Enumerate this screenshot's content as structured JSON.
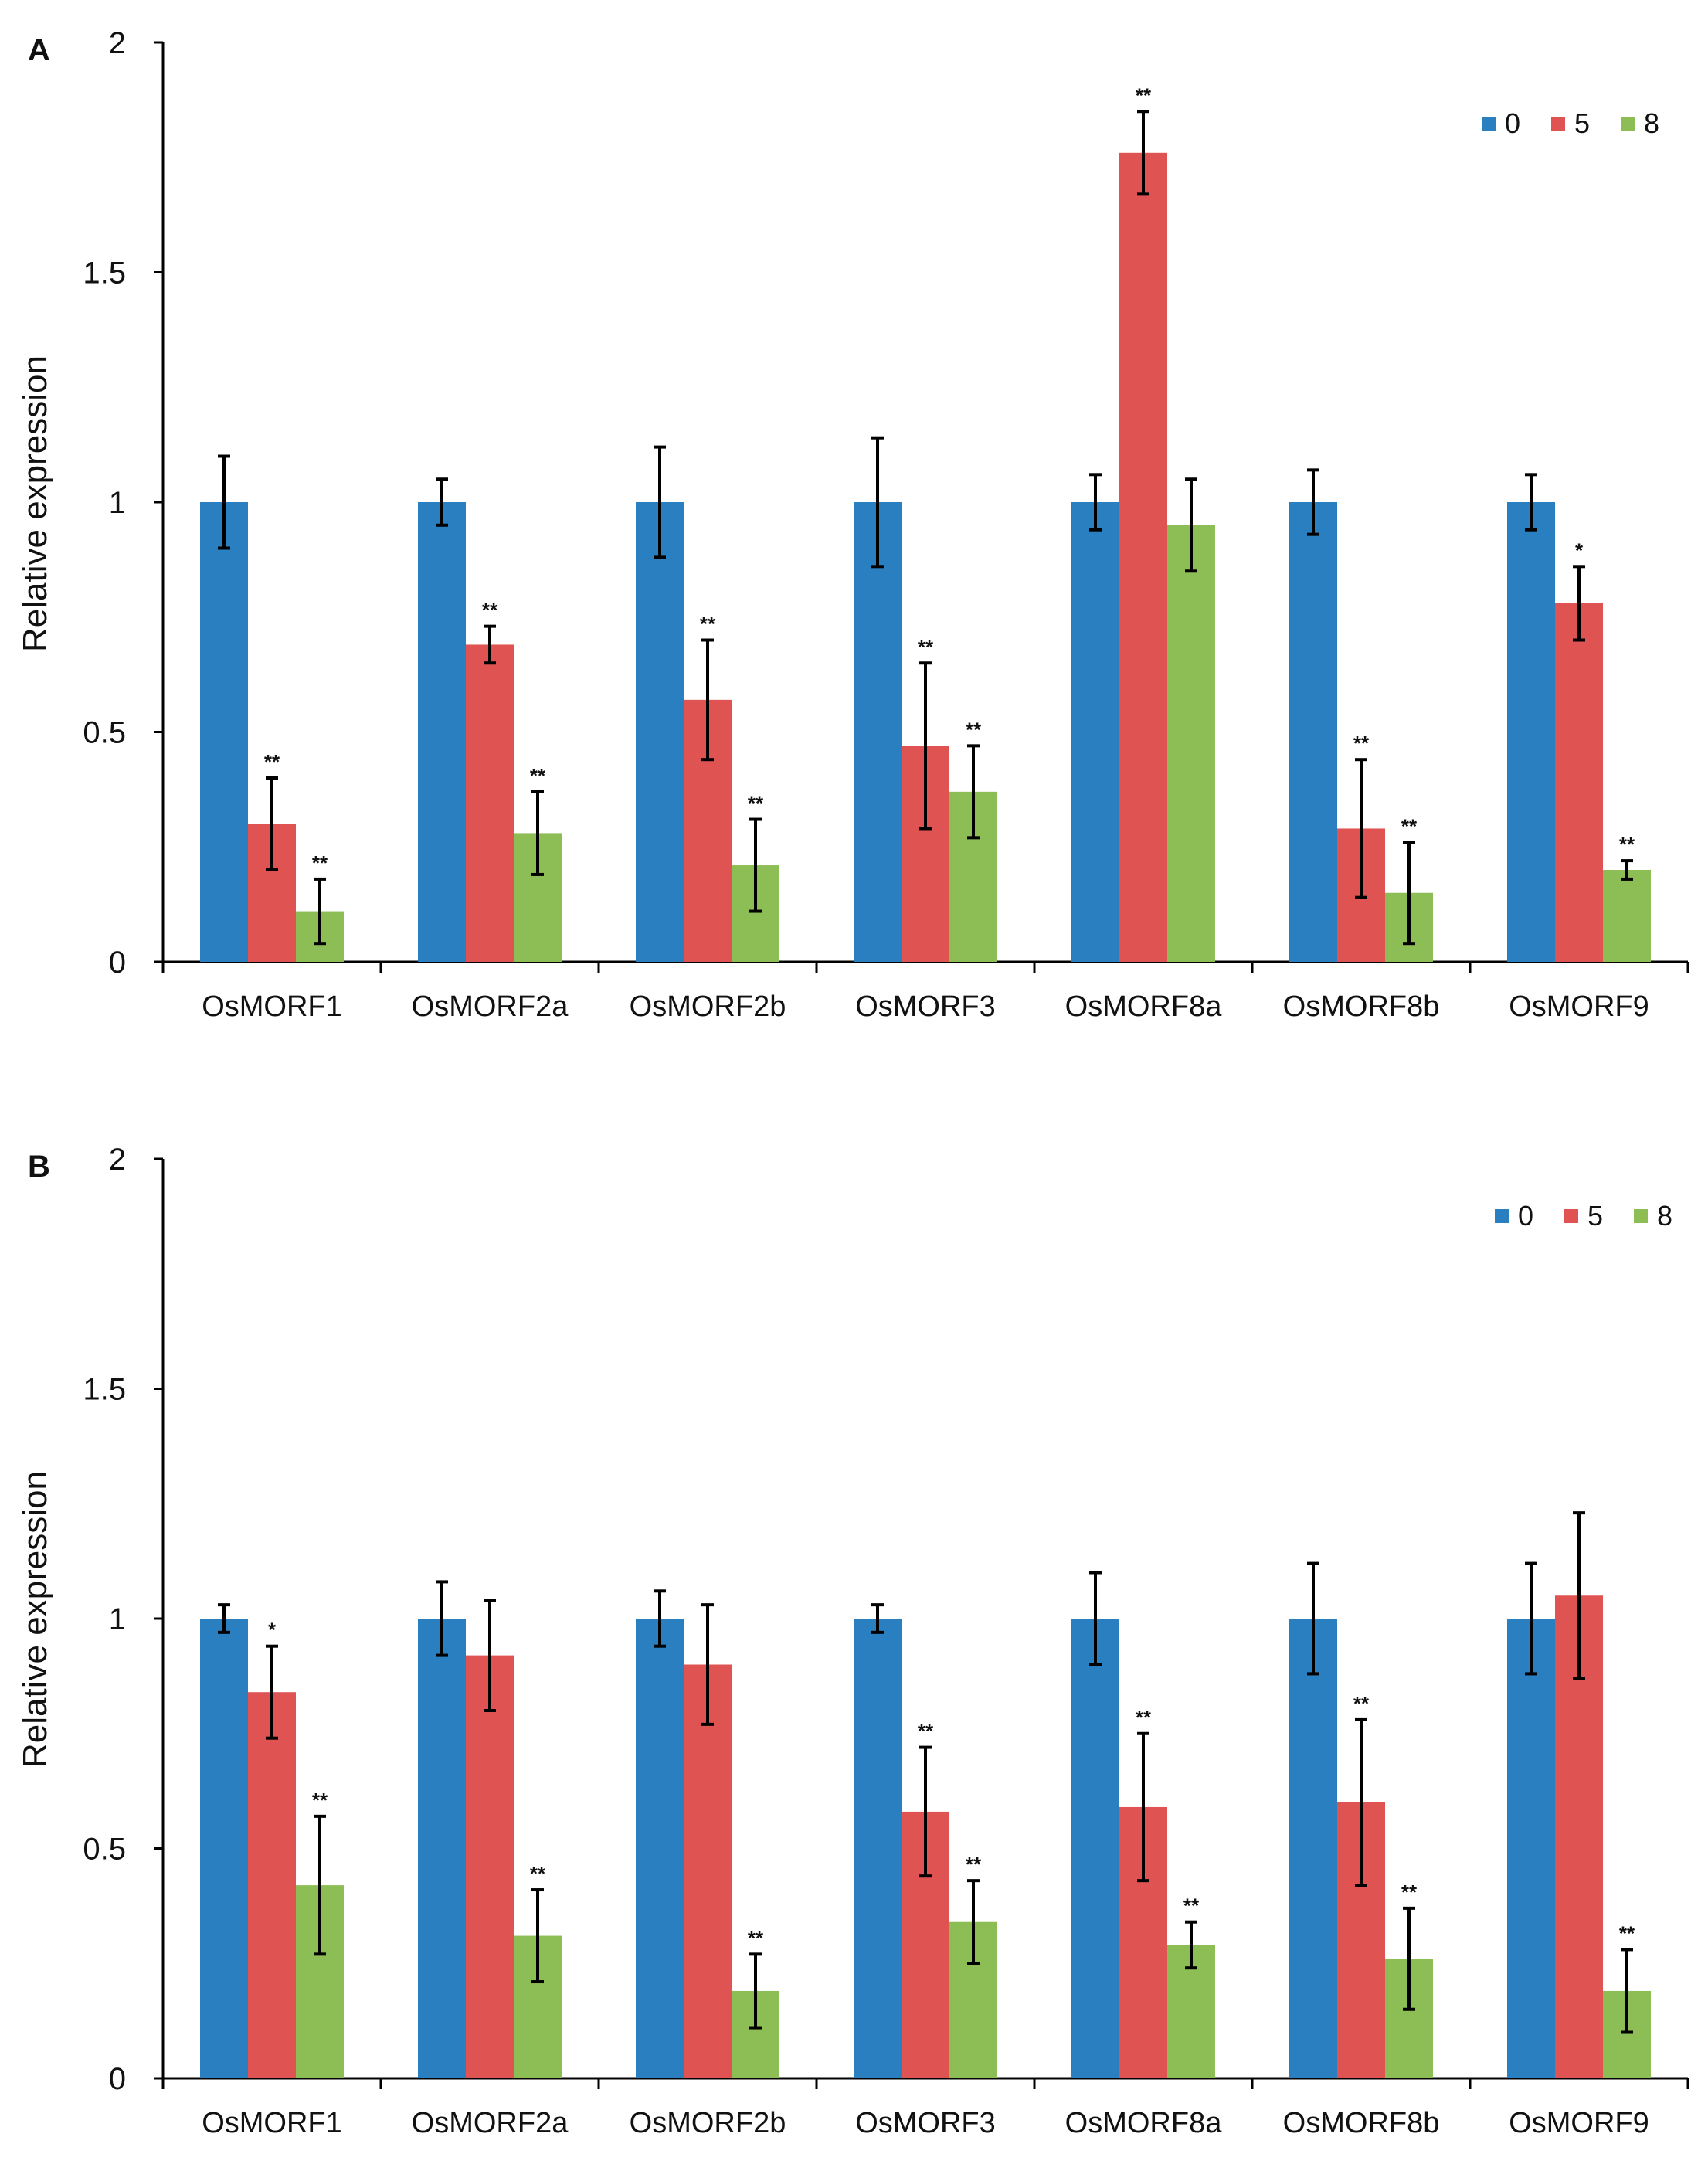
{
  "figure": {
    "series_colors": {
      "0": "#2A7FC1",
      "5": "#E05353",
      "8": "#8CBE55"
    },
    "axis_color": "#000000"
  },
  "chart_data": [
    {
      "panel": "A",
      "type": "bar",
      "title": "",
      "xlabel": "",
      "ylabel": "Relative expression",
      "ylim": [
        0,
        2
      ],
      "yticks": [
        "0",
        "0.5",
        "1",
        "1.5",
        "2"
      ],
      "legend_position": "top-right",
      "categories": [
        "OsMORF1",
        "OsMORF2a",
        "OsMORF2b",
        "OsMORF3",
        "OsMORF8a",
        "OsMORF8b",
        "OsMORF9"
      ],
      "series": [
        {
          "name": "0",
          "color": "#2A7FC1",
          "values": [
            1.0,
            1.0,
            1.0,
            1.0,
            1.0,
            1.0,
            1.0
          ],
          "errors": [
            0.1,
            0.05,
            0.12,
            0.14,
            0.06,
            0.07,
            0.06
          ],
          "marks": [
            "",
            "",
            "",
            "",
            "",
            "",
            ""
          ]
        },
        {
          "name": "5",
          "color": "#E05353",
          "values": [
            0.3,
            0.69,
            0.57,
            0.47,
            1.76,
            0.29,
            0.78
          ],
          "errors": [
            0.1,
            0.04,
            0.13,
            0.18,
            0.09,
            0.15,
            0.08
          ],
          "marks": [
            "**",
            "**",
            "**",
            "**",
            "**",
            "**",
            "*"
          ]
        },
        {
          "name": "8",
          "color": "#8CBE55",
          "values": [
            0.11,
            0.28,
            0.21,
            0.37,
            0.95,
            0.15,
            0.2
          ],
          "errors": [
            0.07,
            0.09,
            0.1,
            0.1,
            0.1,
            0.11,
            0.02
          ],
          "marks": [
            "**",
            "**",
            "**",
            "**",
            "",
            "**",
            "**"
          ]
        }
      ]
    },
    {
      "panel": "B",
      "type": "bar",
      "title": "",
      "xlabel": "",
      "ylabel": "Relative expression",
      "ylim": [
        0,
        2
      ],
      "yticks": [
        "0",
        "0.5",
        "1",
        "1.5",
        "2"
      ],
      "legend_position": "top-right",
      "categories": [
        "OsMORF1",
        "OsMORF2a",
        "OsMORF2b",
        "OsMORF3",
        "OsMORF8a",
        "OsMORF8b",
        "OsMORF9"
      ],
      "series": [
        {
          "name": "0",
          "color": "#2A7FC1",
          "values": [
            1.0,
            1.0,
            1.0,
            1.0,
            1.0,
            1.0,
            1.0
          ],
          "errors": [
            0.03,
            0.08,
            0.06,
            0.03,
            0.1,
            0.12,
            0.12
          ],
          "marks": [
            "",
            "",
            "",
            "",
            "",
            "",
            ""
          ]
        },
        {
          "name": "5",
          "color": "#E05353",
          "values": [
            0.84,
            0.92,
            0.9,
            0.58,
            0.59,
            0.6,
            1.05
          ],
          "errors": [
            0.1,
            0.12,
            0.13,
            0.14,
            0.16,
            0.18,
            0.18
          ],
          "marks": [
            "*",
            "",
            "",
            "**",
            "**",
            "**",
            ""
          ]
        },
        {
          "name": "8",
          "color": "#8CBE55",
          "values": [
            0.42,
            0.31,
            0.19,
            0.34,
            0.29,
            0.26,
            0.19
          ],
          "errors": [
            0.15,
            0.1,
            0.08,
            0.09,
            0.05,
            0.11,
            0.09
          ],
          "marks": [
            "**",
            "**",
            "**",
            "**",
            "**",
            "**",
            "**"
          ]
        }
      ]
    }
  ]
}
